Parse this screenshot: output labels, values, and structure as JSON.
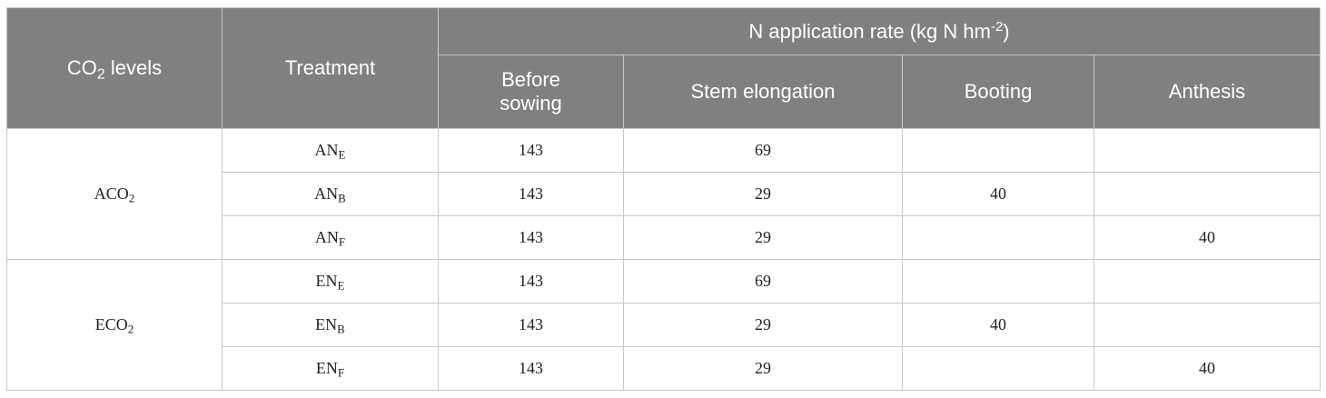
{
  "header": {
    "co2_levels_main": "CO",
    "co2_levels_sub": "2",
    "co2_levels_suffix": " levels",
    "treatment": "Treatment",
    "n_rate_main": "N application rate (kg N hm",
    "n_rate_sup": "-2",
    "n_rate_suffix": ")",
    "stages": [
      "Before sowing",
      "Stem elongation",
      "Booting",
      "Anthesis"
    ]
  },
  "groups": [
    {
      "level_main": "ACO",
      "level_sub": "2",
      "rows": [
        {
          "t_main": "AN",
          "t_sub": "E",
          "before": "143",
          "stem": "69",
          "booting": "",
          "anthesis": ""
        },
        {
          "t_main": "AN",
          "t_sub": "B",
          "before": "143",
          "stem": "29",
          "booting": "40",
          "anthesis": ""
        },
        {
          "t_main": "AN",
          "t_sub": "F",
          "before": "143",
          "stem": "29",
          "booting": "",
          "anthesis": "40"
        }
      ]
    },
    {
      "level_main": "ECO",
      "level_sub": "2",
      "rows": [
        {
          "t_main": "EN",
          "t_sub": "E",
          "before": "143",
          "stem": "69",
          "booting": "",
          "anthesis": ""
        },
        {
          "t_main": "EN",
          "t_sub": "B",
          "before": "143",
          "stem": "29",
          "booting": "40",
          "anthesis": ""
        },
        {
          "t_main": "EN",
          "t_sub": "F",
          "before": "143",
          "stem": "29",
          "booting": "",
          "anthesis": "40"
        }
      ]
    }
  ]
}
